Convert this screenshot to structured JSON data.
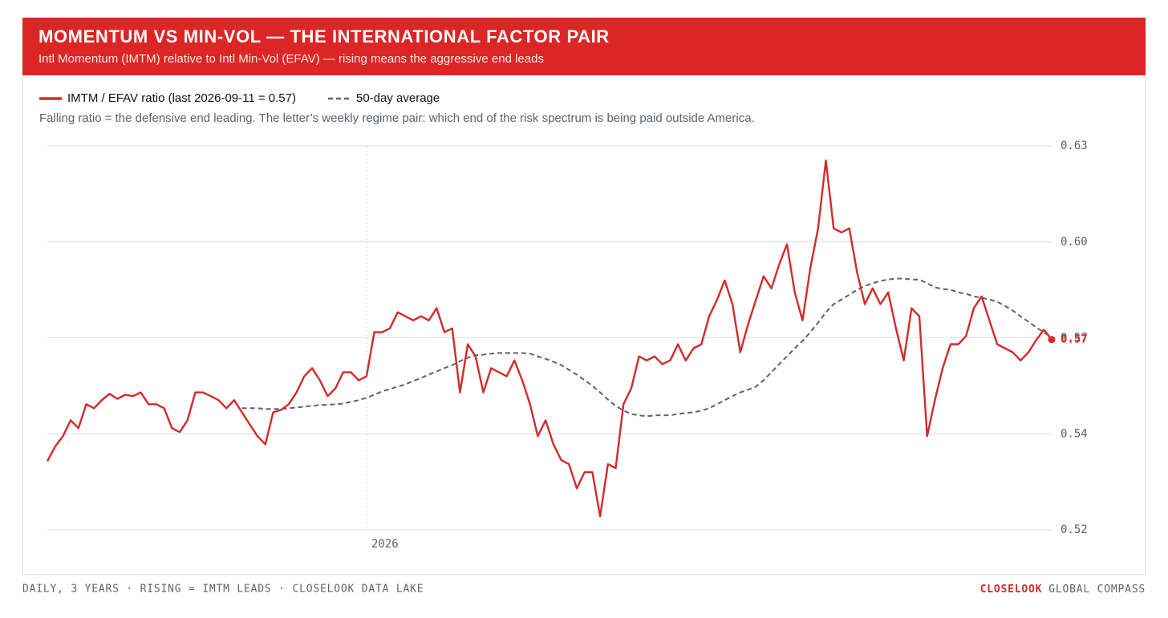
{
  "chart_data": {
    "type": "line",
    "title": "MOMENTUM VS MIN-VOL — THE INTERNATIONAL FACTOR PAIR",
    "subtitle": "Intl Momentum (IMTM) relative to Intl Min-Vol (EFAV) — rising means the aggressive end leads",
    "note": "Falling ratio = the defensive end leading. The letter’s weekly regime pair: which end of the risk spectrum is being paid outside America.",
    "footer_left": "DAILY, 3 YEARS · RISING = IMTM LEADS · CLOSELOOK DATA LAKE",
    "footer_brand": "CLOSELOOK",
    "footer_right": "GLOBAL COMPASS",
    "end_label": "0.57",
    "categories": [
      null,
      null,
      null,
      null,
      null,
      null,
      null,
      null,
      null,
      null,
      null,
      null,
      null,
      null,
      null,
      null,
      null,
      null,
      null,
      null,
      null,
      null,
      null,
      null,
      null,
      null,
      null,
      null,
      null,
      null,
      null,
      null,
      null,
      null,
      null,
      null,
      null,
      null,
      null,
      null,
      null,
      "2026",
      null,
      null,
      null,
      null,
      null,
      null,
      null,
      null,
      null,
      null,
      null,
      null,
      null,
      null,
      null,
      null,
      null,
      null,
      null,
      null,
      null,
      null,
      null,
      null,
      null,
      null,
      null,
      null,
      null,
      null,
      null,
      null,
      null,
      null,
      null,
      null,
      null,
      null,
      null,
      null,
      null,
      null,
      null,
      null,
      null,
      null,
      null,
      null,
      null,
      null,
      null,
      null,
      null,
      null,
      null,
      null,
      null,
      null,
      null,
      null,
      null,
      null,
      null,
      null,
      null,
      null,
      null,
      null,
      null,
      null,
      null,
      null,
      null,
      null,
      null,
      null,
      null,
      null,
      null,
      null,
      null,
      null,
      null,
      null,
      null,
      null,
      null,
      null
    ],
    "series": [
      {
        "name": "IMTM / EFAV ratio (last 2026-09-11 = 0.57)",
        "color": "#d42a2a",
        "style": "solid",
        "values": [
          0.5364,
          0.5407,
          0.5438,
          0.5485,
          0.5462,
          0.5533,
          0.5521,
          0.5545,
          0.5564,
          0.5549,
          0.5561,
          0.5557,
          0.5568,
          0.5533,
          0.5533,
          0.5521,
          0.5462,
          0.545,
          0.5485,
          0.5568,
          0.5568,
          0.5557,
          0.5545,
          0.5521,
          0.5545,
          0.5509,
          0.5473,
          0.5438,
          0.5414,
          0.5509,
          0.5516,
          0.5533,
          0.5568,
          0.5616,
          0.564,
          0.5604,
          0.5557,
          0.558,
          0.5628,
          0.5628,
          0.5604,
          0.5616,
          0.5747,
          0.5747,
          0.5758,
          0.5806,
          0.5794,
          0.5782,
          0.5794,
          0.5782,
          0.5818,
          0.5747,
          0.5758,
          0.5568,
          0.5711,
          0.5675,
          0.5568,
          0.564,
          0.5628,
          0.5616,
          0.5663,
          0.5604,
          0.5533,
          0.5438,
          0.5485,
          0.5414,
          0.5367,
          0.5355,
          0.5283,
          0.5331,
          0.5331,
          0.52,
          0.5355,
          0.5343,
          0.5533,
          0.558,
          0.5675,
          0.5663,
          0.5675,
          0.5652,
          0.5663,
          0.5711,
          0.5663,
          0.5699,
          0.5711,
          0.5794,
          0.5842,
          0.5901,
          0.583,
          0.5687,
          0.577,
          0.5842,
          0.5913,
          0.5877,
          0.5948,
          0.6008,
          0.5865,
          0.5782,
          0.5937,
          0.6055,
          0.6257,
          0.6055,
          0.6043,
          0.6055,
          0.5925,
          0.583,
          0.5877,
          0.583,
          0.5865,
          0.5758,
          0.5663,
          0.5818,
          0.5794,
          0.5438,
          0.5545,
          0.564,
          0.5711,
          0.5711,
          0.5735,
          0.5818,
          0.5853,
          0.5782,
          0.5711,
          0.5699,
          0.5687,
          0.5663,
          0.5687,
          0.5723,
          0.5754,
          0.5725
        ]
      },
      {
        "name": "50-day average",
        "color": "#5a6270",
        "style": "dashed",
        "values": [
          null,
          null,
          null,
          null,
          null,
          null,
          null,
          null,
          null,
          null,
          null,
          null,
          null,
          null,
          null,
          null,
          null,
          null,
          null,
          null,
          null,
          null,
          null,
          null,
          null,
          0.5521,
          0.5521,
          0.5521,
          0.5519,
          0.5519,
          0.5519,
          0.5521,
          0.5523,
          0.5526,
          0.5528,
          0.5531,
          0.5531,
          0.5533,
          0.5535,
          0.554,
          0.5545,
          0.5552,
          0.5561,
          0.5571,
          0.5578,
          0.5585,
          0.5592,
          0.5602,
          0.5611,
          0.5621,
          0.563,
          0.564,
          0.5649,
          0.5661,
          0.5671,
          0.5678,
          0.568,
          0.5683,
          0.5685,
          0.5685,
          0.5685,
          0.5685,
          0.5683,
          0.5675,
          0.5668,
          0.5659,
          0.5649,
          0.5635,
          0.5621,
          0.5604,
          0.5588,
          0.5568,
          0.5547,
          0.5528,
          0.5514,
          0.5504,
          0.55,
          0.5497,
          0.55,
          0.55,
          0.55,
          0.5504,
          0.5507,
          0.5509,
          0.5514,
          0.5521,
          0.5533,
          0.5545,
          0.5557,
          0.5568,
          0.5576,
          0.5585,
          0.5604,
          0.5628,
          0.5652,
          0.5675,
          0.5699,
          0.5721,
          0.5747,
          0.5775,
          0.5806,
          0.583,
          0.5844,
          0.5858,
          0.5873,
          0.5884,
          0.5892,
          0.5899,
          0.5903,
          0.5906,
          0.5906,
          0.5903,
          0.5903,
          0.5892,
          0.588,
          0.5875,
          0.5873,
          0.5865,
          0.5861,
          0.5853,
          0.5849,
          0.5844,
          0.5837,
          0.5825,
          0.5811,
          0.5794,
          0.5778,
          0.5761,
          0.5747,
          0.573
        ]
      }
    ],
    "ylim": [
      0.516,
      0.63
    ],
    "yticks": [
      {
        "value": 0.516,
        "label": "0.52"
      },
      {
        "value": 0.5445,
        "label": "0.54"
      },
      {
        "value": 0.573,
        "label": "0.57"
      },
      {
        "value": 0.6015,
        "label": "0.60"
      },
      {
        "value": 0.63,
        "label": "0.63"
      }
    ],
    "grid": true
  }
}
